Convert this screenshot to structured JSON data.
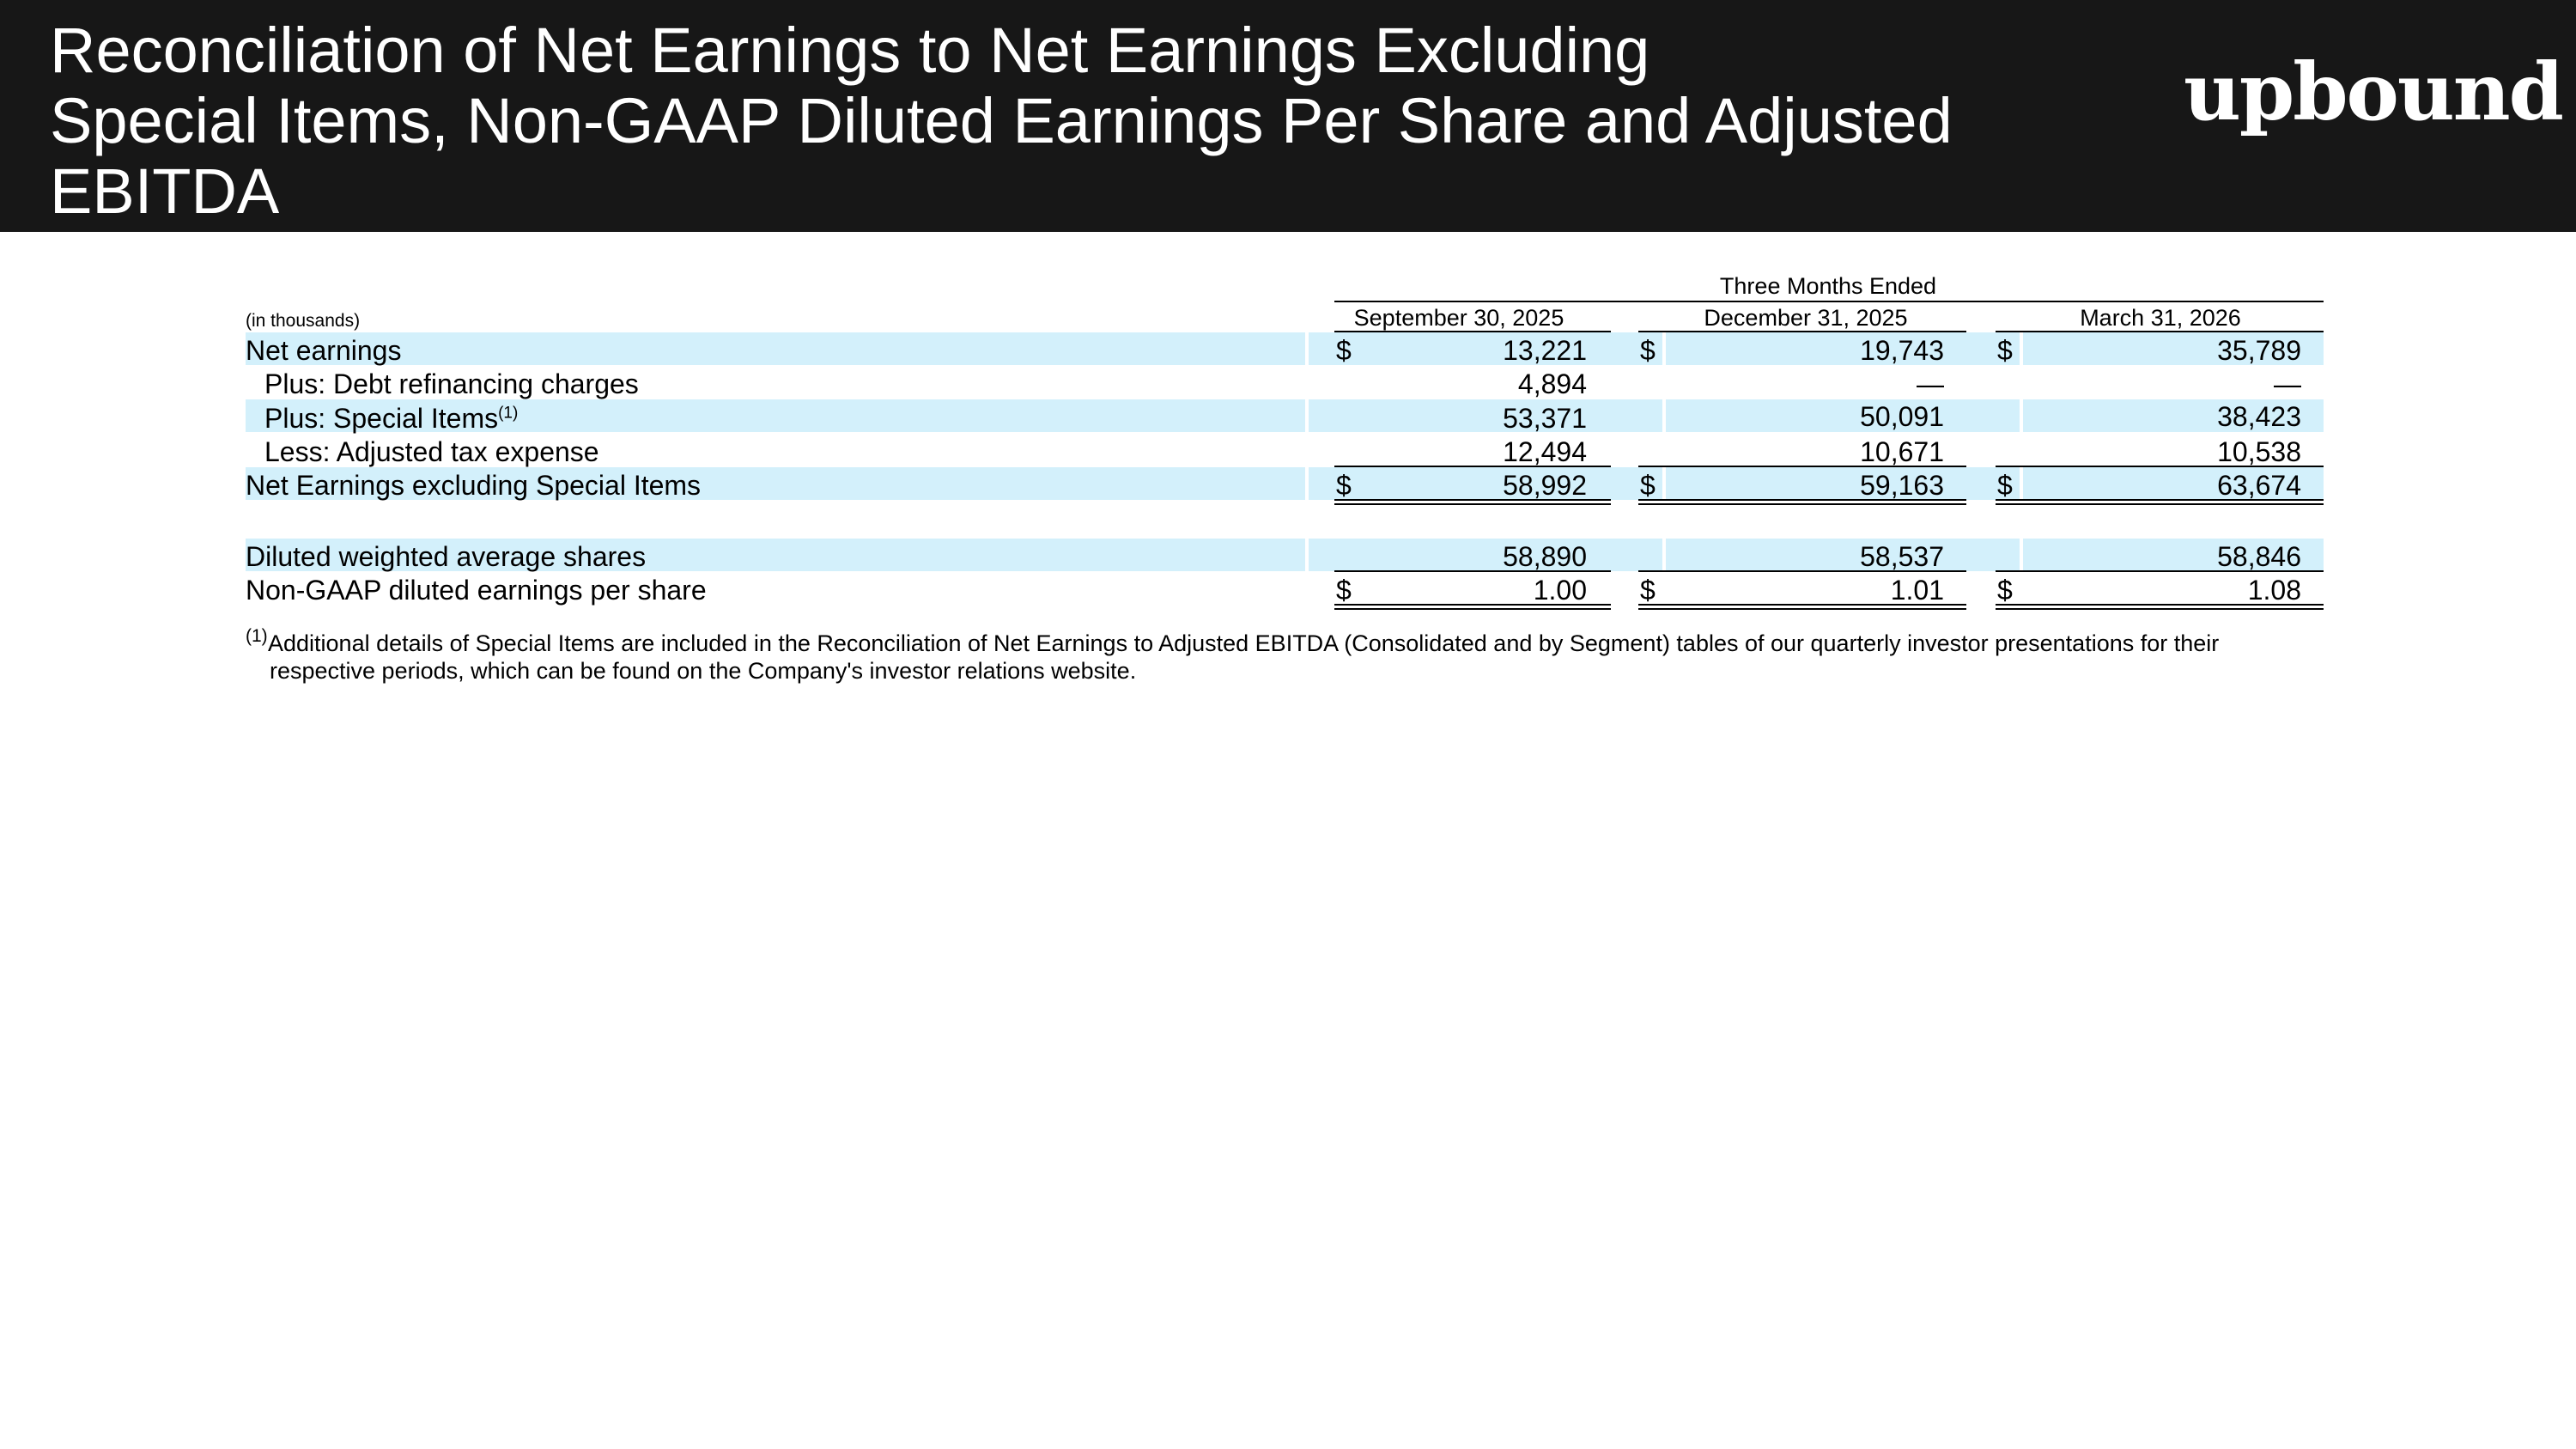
{
  "header": {
    "title_lines": [
      "Reconciliation of Net Earnings to Net Earnings Excluding",
      "Special Items, Non-GAAP Diluted Earnings Per Share and Adjusted",
      "EBITDA"
    ],
    "logo_text": "upbound"
  },
  "table": {
    "group_header": "Three Months Ended",
    "units_label": "(in thousands)",
    "columns": [
      "September 30, 2025",
      "December 31, 2025",
      "March 31, 2026"
    ],
    "currency_symbol": "$",
    "footnote_marker": "(1)",
    "rows": [
      {
        "label": "Net earnings",
        "values": [
          "13,221",
          "19,743",
          "35,789"
        ]
      },
      {
        "label": "Plus: Debt refinancing charges",
        "values": [
          "4,894",
          "—",
          "—"
        ]
      },
      {
        "label": "Plus: Special Items",
        "values": [
          "53,371",
          "50,091",
          "38,423"
        ]
      },
      {
        "label": "Less: Adjusted tax expense",
        "values": [
          "12,494",
          "10,671",
          "10,538"
        ]
      },
      {
        "label": "Net Earnings excluding Special Items",
        "values": [
          "58,992",
          "59,163",
          "63,674"
        ]
      },
      {
        "label": "Diluted weighted average shares",
        "values": [
          "58,890",
          "58,537",
          "58,846"
        ]
      },
      {
        "label": "Non-GAAP diluted earnings per share",
        "values": [
          "1.00",
          "1.01",
          "1.08"
        ]
      }
    ],
    "footnote": {
      "marker": "(1)",
      "line1": "Additional details of Special Items are included in the Reconciliation of Net Earnings to Adjusted EBITDA (Consolidated and by Segment) tables of our quarterly investor presentations for their",
      "line2": "respective periods, which can be found on the Company's investor relations website."
    }
  },
  "colors": {
    "header_bg": "#171717",
    "band_bg": "#d3f0fb"
  }
}
